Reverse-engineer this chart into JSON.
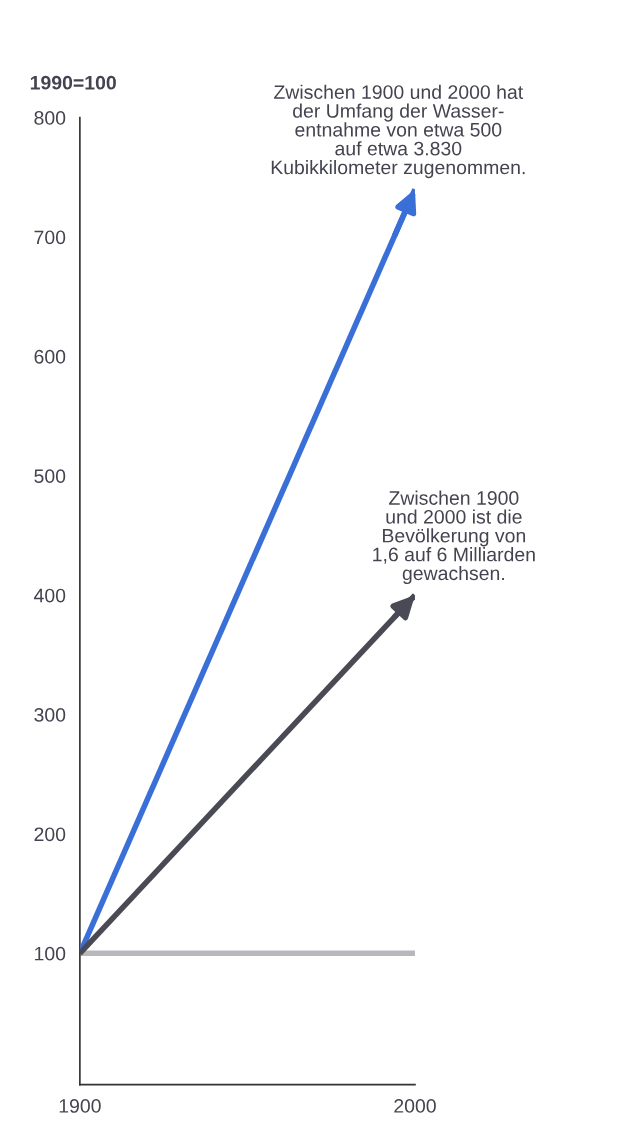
{
  "chart_data": {
    "type": "line",
    "x": [
      1900,
      2000
    ],
    "series": [
      {
        "color": "#3a6fd8",
        "values": [
          100,
          740
        ]
      },
      {
        "color": "#4a4a55",
        "values": [
          100,
          400
        ]
      }
    ],
    "ylabel": "1990=100",
    "xlim": [
      1900,
      2000
    ],
    "ylim": [
      -10,
      800
    ],
    "xticks": [
      1900,
      2000
    ],
    "yticks": [
      100,
      200,
      300,
      400,
      500,
      600,
      700,
      800
    ],
    "ref_lines": [
      {
        "axis": "y",
        "value": 100,
        "color": "#b8b8bc"
      }
    ],
    "annotations": [
      {
        "text": "Zwischen 1900 und 2000 hat\nder Umfang der Wasser-\nentnahme von etwa 500\nauf etwa 3.830\nKubikkilometer zugenommen.",
        "x": 2000,
        "y": 740
      },
      {
        "text": "Zwischen 1900\nund 2000 ist die\nBevölkerung von\n1,6 auf 6 Milliarden\ngewachsen.",
        "x": 2000,
        "y": 400
      }
    ],
    "grid": false,
    "marker": "none",
    "line_style": "solid"
  }
}
